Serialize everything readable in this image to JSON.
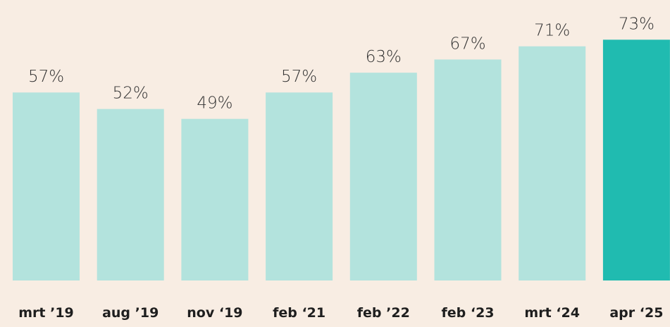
{
  "chart_data": {
    "type": "bar",
    "categories": [
      "mrt ’19",
      "aug ’19",
      "nov ‘19",
      "feb ‘21",
      "feb ’22",
      "feb ‘23",
      "mrt ‘24",
      "apr ‘25"
    ],
    "values": [
      57,
      52,
      49,
      57,
      63,
      67,
      71,
      73
    ],
    "value_labels": [
      "57%",
      "52%",
      "49%",
      "57%",
      "63%",
      "67%",
      "71%",
      "73%"
    ],
    "colors": [
      "#b3e3dd",
      "#b3e3dd",
      "#b3e3dd",
      "#b3e3dd",
      "#b3e3dd",
      "#b3e3dd",
      "#b3e3dd",
      "#20bbb0"
    ]
  }
}
